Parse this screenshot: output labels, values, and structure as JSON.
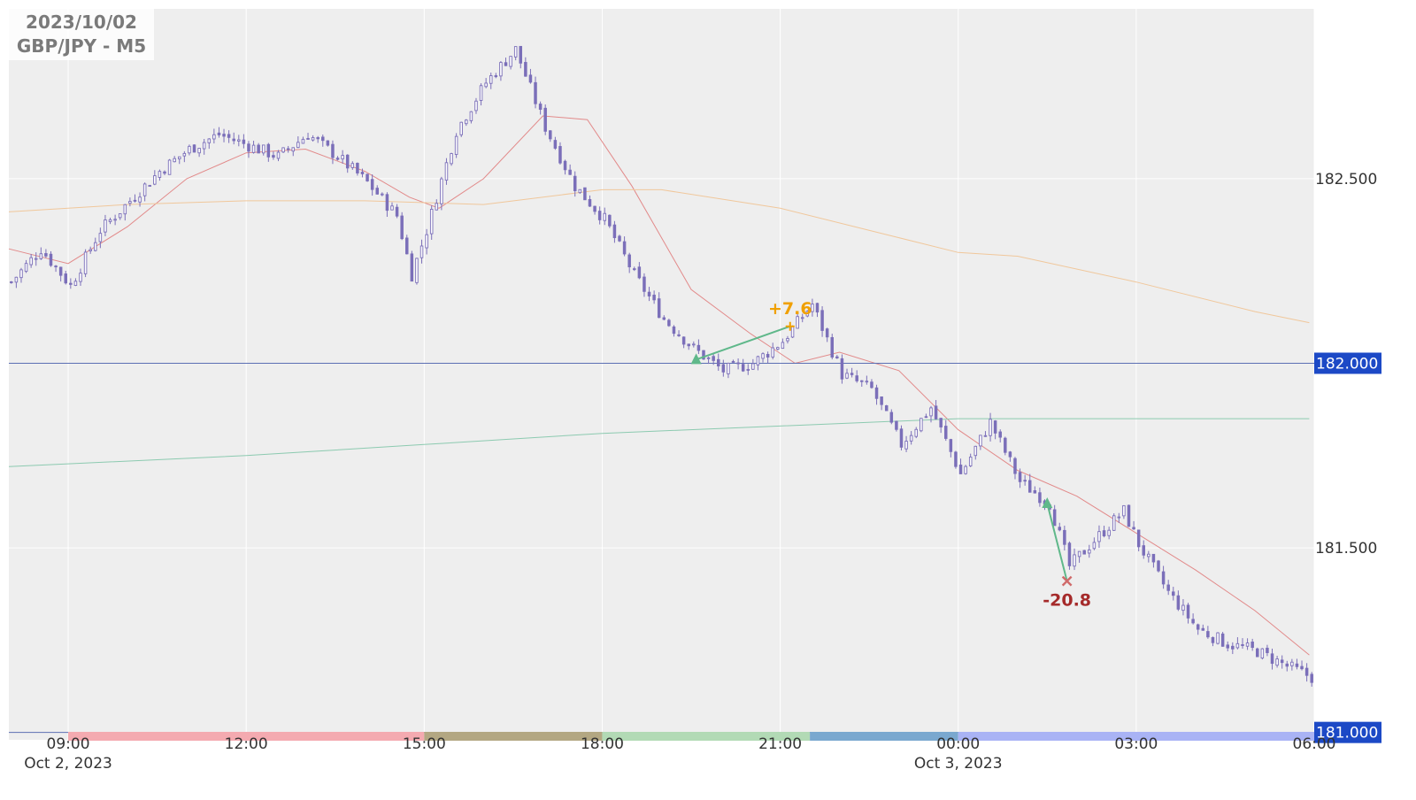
{
  "title": {
    "date": "2023/10/02",
    "symbol": "GBP/JPY - M5"
  },
  "colors": {
    "plot_bg": "#eeeeee",
    "grid": "#ffffff",
    "candle": "#7b6fb9",
    "level_line": "#5b6fb3",
    "level_badge": "#1c49c6",
    "ma_fast": "#e28a8a",
    "ma_mid": "#f0c79b",
    "ma_slow": "#8ccab0",
    "profit_text": "#f0a000",
    "loss_text": "#a52a2a",
    "trade_line": "#5fb88a"
  },
  "chart_data": {
    "type": "candlestick",
    "x_axis": {
      "ticks": [
        "09:00",
        "12:00",
        "15:00",
        "18:00",
        "21:00",
        "00:00",
        "03:00",
        "06:00"
      ],
      "date_labels": [
        {
          "text": "Oct 2, 2023",
          "at": "09:00"
        },
        {
          "text": "Oct 3, 2023",
          "at": "00:00"
        }
      ],
      "range": [
        "08:00",
        "06:00"
      ]
    },
    "y_axis": {
      "ticks": [
        "181.500",
        "182.500"
      ],
      "highlighted_levels": [
        "181.000",
        "182.000"
      ],
      "range": [
        180.98,
        182.96
      ]
    },
    "anchors_close": [
      [
        "08:00",
        182.22
      ],
      [
        "08:30",
        182.31
      ],
      [
        "09:00",
        182.21
      ],
      [
        "09:30",
        182.36
      ],
      [
        "10:00",
        182.44
      ],
      [
        "10:30",
        182.52
      ],
      [
        "11:00",
        182.58
      ],
      [
        "11:30",
        182.62
      ],
      [
        "12:00",
        182.59
      ],
      [
        "12:30",
        182.56
      ],
      [
        "13:00",
        182.62
      ],
      [
        "13:30",
        182.56
      ],
      [
        "14:00",
        182.49
      ],
      [
        "14:30",
        182.4
      ],
      [
        "14:45",
        182.24
      ],
      [
        "15:00",
        182.36
      ],
      [
        "15:30",
        182.63
      ],
      [
        "16:00",
        182.76
      ],
      [
        "16:30",
        182.85
      ],
      [
        "17:00",
        182.64
      ],
      [
        "17:30",
        182.48
      ],
      [
        "18:00",
        182.39
      ],
      [
        "18:30",
        182.24
      ],
      [
        "19:00",
        182.12
      ],
      [
        "19:30",
        182.04
      ],
      [
        "20:00",
        181.98
      ],
      [
        "20:30",
        182.0
      ],
      [
        "21:00",
        182.06
      ],
      [
        "21:30",
        182.16
      ],
      [
        "22:00",
        181.97
      ],
      [
        "22:30",
        181.93
      ],
      [
        "23:00",
        181.78
      ],
      [
        "23:30",
        181.88
      ],
      [
        "00:00",
        181.7
      ],
      [
        "00:30",
        181.84
      ],
      [
        "01:00",
        181.68
      ],
      [
        "01:30",
        181.62
      ],
      [
        "01:50",
        181.45
      ],
      [
        "02:15",
        181.52
      ],
      [
        "02:45",
        181.6
      ],
      [
        "03:00",
        181.51
      ],
      [
        "03:30",
        181.38
      ],
      [
        "04:00",
        181.28
      ],
      [
        "04:30",
        181.24
      ],
      [
        "05:00",
        181.22
      ],
      [
        "05:30",
        181.18
      ],
      [
        "05:55",
        181.15
      ]
    ],
    "moving_averages": [
      {
        "role": "fast",
        "points": [
          [
            "08:00",
            182.31
          ],
          [
            "09:00",
            182.27
          ],
          [
            "10:00",
            182.37
          ],
          [
            "11:00",
            182.5
          ],
          [
            "12:00",
            182.57
          ],
          [
            "13:00",
            182.58
          ],
          [
            "14:00",
            182.52
          ],
          [
            "14:45",
            182.45
          ],
          [
            "15:15",
            182.42
          ],
          [
            "16:00",
            182.5
          ],
          [
            "17:00",
            182.67
          ],
          [
            "17:45",
            182.66
          ],
          [
            "18:30",
            182.48
          ],
          [
            "19:30",
            182.2
          ],
          [
            "20:30",
            182.08
          ],
          [
            "21:15",
            182.0
          ],
          [
            "22:00",
            182.03
          ],
          [
            "23:00",
            181.98
          ],
          [
            "00:00",
            181.82
          ],
          [
            "01:00",
            181.71
          ],
          [
            "02:00",
            181.64
          ],
          [
            "03:00",
            181.54
          ],
          [
            "04:00",
            181.44
          ],
          [
            "05:00",
            181.33
          ],
          [
            "05:55",
            181.21
          ]
        ]
      },
      {
        "role": "mid",
        "points": [
          [
            "08:00",
            182.41
          ],
          [
            "10:00",
            182.43
          ],
          [
            "12:00",
            182.44
          ],
          [
            "14:00",
            182.44
          ],
          [
            "16:00",
            182.43
          ],
          [
            "18:00",
            182.47
          ],
          [
            "19:00",
            182.47
          ],
          [
            "21:00",
            182.42
          ],
          [
            "23:00",
            182.34
          ],
          [
            "00:00",
            182.3
          ],
          [
            "01:00",
            182.29
          ],
          [
            "03:00",
            182.22
          ],
          [
            "05:00",
            182.14
          ],
          [
            "05:55",
            182.11
          ]
        ]
      },
      {
        "role": "slow",
        "points": [
          [
            "08:00",
            181.72
          ],
          [
            "12:00",
            181.75
          ],
          [
            "15:00",
            181.78
          ],
          [
            "18:00",
            181.81
          ],
          [
            "21:00",
            181.83
          ],
          [
            "00:00",
            181.85
          ],
          [
            "03:00",
            181.85
          ],
          [
            "05:55",
            181.85
          ]
        ]
      }
    ],
    "trades": [
      {
        "entry": [
          "19:35",
          182.01
        ],
        "exit": [
          "21:10",
          182.1
        ],
        "result": "+7.6",
        "outcome": "profit"
      },
      {
        "entry": [
          "01:30",
          181.62
        ],
        "exit": [
          "01:50",
          181.41
        ],
        "result": "-20.8",
        "outcome": "loss"
      }
    ],
    "session_bands": [
      {
        "from": "09:00",
        "to": "15:00",
        "color": "#f4aab0"
      },
      {
        "from": "15:00",
        "to": "18:00",
        "color": "#b3a782"
      },
      {
        "from": "18:00",
        "to": "21:30",
        "color": "#b2dab5"
      },
      {
        "from": "21:30",
        "to": "00:00",
        "color": "#7aa8cf"
      },
      {
        "from": "00:00",
        "to": "06:00",
        "color": "#a9b3f5"
      }
    ]
  }
}
